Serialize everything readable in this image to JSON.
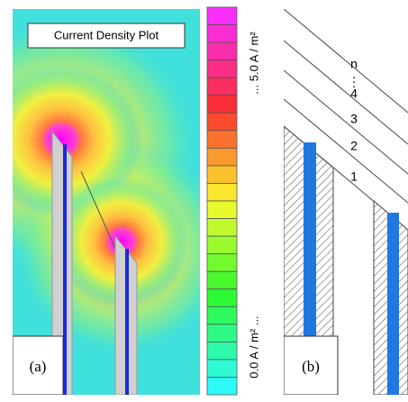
{
  "panel_a": {
    "title": "Current Density Plot",
    "label": "(a)"
  },
  "colorbar": {
    "low_label": "0.0 A / m² ...",
    "high_label": "... 5.0 A / m²"
  },
  "panel_b": {
    "label": "(b)",
    "layers": [
      "n",
      "⋮",
      "4",
      "3",
      "2",
      "1"
    ]
  }
}
